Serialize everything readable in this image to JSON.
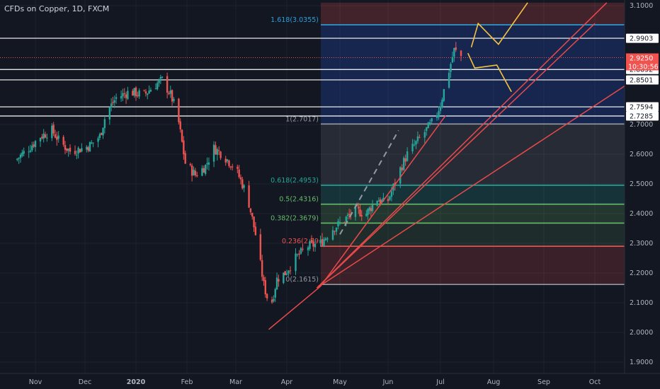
{
  "header": {
    "title": "CFDs on Copper, 1D, FXCM"
  },
  "colors": {
    "background": "#131722",
    "bull": "#26a69a",
    "bear": "#ef5350",
    "axis_text": "#b2b5be",
    "grid": "#1e222d",
    "price_tag": "#ef5350",
    "white_line": "#ffffff",
    "fan": "#e84a4a",
    "arrows": "#f5c242",
    "fib_blue": "#2d9fd8",
    "fib_teal": "#26a69a",
    "fib_green": "#66bb6a",
    "fib_red": "#ef5350",
    "fib_gray": "#9598a1"
  },
  "chart_data": {
    "type": "candlestick",
    "title": "CFDs on Copper, 1D, FXCM",
    "x_ticks": [
      "Nov",
      "Dec",
      "2020",
      "Feb",
      "Mar",
      "Apr",
      "May",
      "Jun",
      "Jul",
      "Aug",
      "Sep",
      "Oct"
    ],
    "ylim": [
      1.88,
      3.11
    ],
    "y_ticks": [
      "3.1000",
      "2.7000",
      "2.6000",
      "2.5000",
      "2.4000",
      "2.3000",
      "2.2000",
      "2.1000",
      "2.0000",
      "1.9000"
    ],
    "grid": true,
    "price_labels": [
      {
        "label": "2.9903",
        "value": 2.9903
      },
      {
        "label": "2.8852",
        "value": 2.8852
      },
      {
        "label": "2.8501",
        "value": 2.8501
      },
      {
        "label": "2.7594",
        "value": 2.7594
      },
      {
        "label": "2.7285",
        "value": 2.7285
      }
    ],
    "current_price": {
      "label": "2.9250",
      "countdown": "10:30:56",
      "value": 2.925
    },
    "fib_levels": [
      {
        "label": "1.618(3.0355)",
        "value": 3.0355,
        "color": "#2d9fd8"
      },
      {
        "label": "1(2.7017)",
        "value": 2.7017,
        "color": "#9598a1"
      },
      {
        "label": "0.618(2.4953)",
        "value": 2.4953,
        "color": "#26a69a"
      },
      {
        "label": "0.5(2.4316)",
        "value": 2.4316,
        "color": "#66bb6a"
      },
      {
        "label": "0.382(2.3679)",
        "value": 2.3679,
        "color": "#66bb6a"
      },
      {
        "label": "0.236(2.29",
        "value": 2.29,
        "color": "#ef5350"
      },
      {
        "label": "0(2.1615)",
        "value": 2.1615,
        "color": "#9598a1"
      }
    ],
    "series": [
      {
        "close_path": [
          [
            "2019-10-20",
            2.58
          ],
          [
            "2019-10-28",
            2.62
          ],
          [
            "2019-11-04",
            2.66
          ],
          [
            "2019-11-11",
            2.68
          ],
          [
            "2019-11-16",
            2.64
          ],
          [
            "2019-11-22",
            2.61
          ],
          [
            "2019-11-30",
            2.62
          ],
          [
            "2019-12-04",
            2.63
          ],
          [
            "2019-12-10",
            2.66
          ],
          [
            "2019-12-14",
            2.74
          ],
          [
            "2019-12-20",
            2.79
          ],
          [
            "2019-12-28",
            2.81
          ],
          [
            "2020-01-06",
            2.8
          ],
          [
            "2020-01-12",
            2.83
          ],
          [
            "2020-01-17",
            2.85
          ],
          [
            "2020-01-22",
            2.8
          ],
          [
            "2020-01-26",
            2.74
          ],
          [
            "2020-01-31",
            2.57
          ],
          [
            "2020-02-06",
            2.53
          ],
          [
            "2020-02-12",
            2.56
          ],
          [
            "2020-02-17",
            2.62
          ],
          [
            "2020-02-22",
            2.6
          ],
          [
            "2020-03-01",
            2.55
          ],
          [
            "2020-03-08",
            2.46
          ],
          [
            "2020-03-13",
            2.33
          ],
          [
            "2020-03-18",
            2.16
          ],
          [
            "2020-03-22",
            2.08
          ],
          [
            "2020-03-26",
            2.18
          ],
          [
            "2020-03-31",
            2.2
          ],
          [
            "2020-04-06",
            2.25
          ],
          [
            "2020-04-13",
            2.29
          ],
          [
            "2020-04-20",
            2.3
          ],
          [
            "2020-04-27",
            2.35
          ],
          [
            "2020-05-04",
            2.38
          ],
          [
            "2020-05-11",
            2.41
          ],
          [
            "2020-05-18",
            2.4
          ],
          [
            "2020-05-25",
            2.45
          ],
          [
            "2020-05-31",
            2.43
          ],
          [
            "2020-06-04",
            2.49
          ],
          [
            "2020-06-08",
            2.55
          ],
          [
            "2020-06-12",
            2.6
          ],
          [
            "2020-06-16",
            2.63
          ],
          [
            "2020-06-20",
            2.66
          ],
          [
            "2020-06-24",
            2.69
          ],
          [
            "2020-06-28",
            2.72
          ],
          [
            "2020-07-01",
            2.77
          ],
          [
            "2020-07-05",
            2.86
          ],
          [
            "2020-07-09",
            2.95
          ],
          [
            "2020-07-13",
            2.93
          ]
        ]
      }
    ],
    "annotations": [
      "fib extension levels 0 to 1.618",
      "fan lines from March low",
      "projected zigzag arrows",
      "dashed trend line"
    ]
  }
}
